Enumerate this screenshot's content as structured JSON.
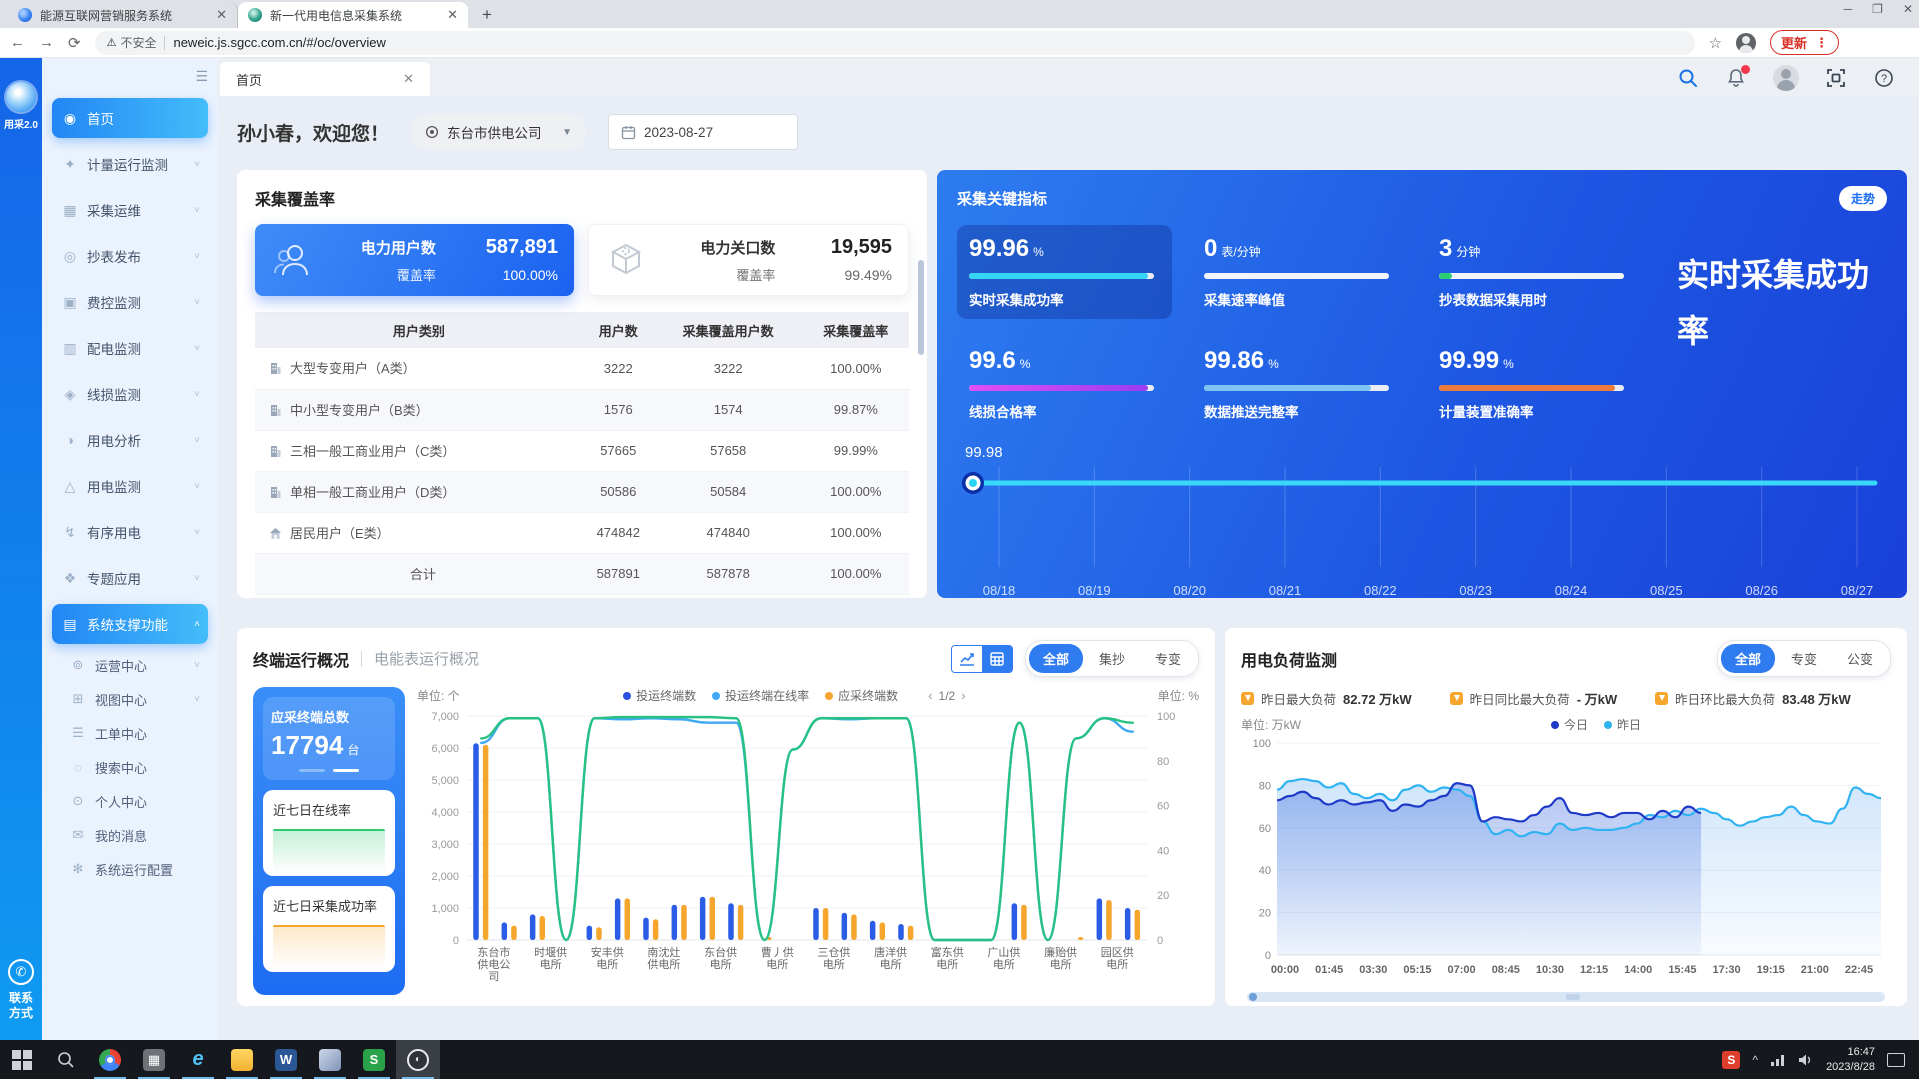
{
  "browser": {
    "tabs": [
      {
        "title": "能源互联网营销服务系统"
      },
      {
        "title": "新一代用电信息采集系统"
      }
    ],
    "new_tab": "+",
    "security_label": "不安全",
    "url": "neweic.js.sgcc.com.cn/#/oc/overview",
    "update_button": "更新"
  },
  "rail": {
    "logo_text": "用采2.0",
    "contact_label": "联系\n方式"
  },
  "sidebar": {
    "items": [
      {
        "label": "首页",
        "icon": "◉",
        "active": true,
        "chevron": false
      },
      {
        "label": "计量运行监测",
        "icon": "✦",
        "chevron": true
      },
      {
        "label": "采集运维",
        "icon": "▦",
        "chevron": true
      },
      {
        "label": "抄表发布",
        "icon": "◎",
        "chevron": true
      },
      {
        "label": "费控监测",
        "icon": "▣",
        "chevron": true
      },
      {
        "label": "配电监测",
        "icon": "▥",
        "chevron": true
      },
      {
        "label": "线损监测",
        "icon": "◈",
        "chevron": true
      },
      {
        "label": "用电分析",
        "icon": "◑",
        "chevron": true
      },
      {
        "label": "用电监测",
        "icon": "△",
        "chevron": true
      },
      {
        "label": "有序用电",
        "icon": "↯",
        "chevron": true
      },
      {
        "label": "专题应用",
        "icon": "❖",
        "chevron": true
      },
      {
        "label": "系统支撑功能",
        "icon": "▤",
        "active": true,
        "expanded": true
      }
    ],
    "sub_items": [
      {
        "label": "运营中心",
        "icon": "⊚",
        "chevron": true
      },
      {
        "label": "视图中心",
        "icon": "⊞",
        "chevron": true
      },
      {
        "label": "工单中心",
        "icon": "☰",
        "chevron": false
      },
      {
        "label": "搜索中心",
        "icon": "◌",
        "chevron": false
      },
      {
        "label": "个人中心",
        "icon": "⊙",
        "chevron": false
      },
      {
        "label": "我的消息",
        "icon": "✉",
        "chevron": false
      },
      {
        "label": "系统运行配置",
        "icon": "✻",
        "chevron": false
      }
    ]
  },
  "header": {
    "page_tab": "首页",
    "greeting": "孙小春，欢迎您！",
    "org_select": "东台市供电公司",
    "date": "2023-08-27"
  },
  "coverage_card": {
    "title": "采集覆盖率",
    "power_users": {
      "label": "电力用户数",
      "value": "587,891",
      "rate_label": "覆盖率",
      "rate": "100.00%"
    },
    "gateways": {
      "label": "电力关口数",
      "value": "19,595",
      "rate_label": "覆盖率",
      "rate": "99.49%"
    },
    "table": {
      "headers": [
        "用户类别",
        "用户数",
        "采集覆盖用户数",
        "采集覆盖率"
      ],
      "rows": [
        {
          "icon": "building",
          "cells": [
            "大型专变用户（A类）",
            "3222",
            "3222",
            "100.00%"
          ]
        },
        {
          "icon": "building",
          "cells": [
            "中小型专变用户（B类）",
            "1576",
            "1574",
            "99.87%"
          ]
        },
        {
          "icon": "building",
          "cells": [
            "三相一般工商业用户（C类）",
            "57665",
            "57658",
            "99.99%"
          ]
        },
        {
          "icon": "building",
          "cells": [
            "单相一般工商业用户（D类）",
            "50586",
            "50584",
            "100.00%"
          ]
        },
        {
          "icon": "house",
          "cells": [
            "居民用户（E类）",
            "474842",
            "474840",
            "100.00%"
          ]
        },
        {
          "icon": "none",
          "cells": [
            "合计",
            "587891",
            "587878",
            "100.00%"
          ]
        }
      ]
    }
  },
  "kpi_card": {
    "title": "采集关键指标",
    "trend_button": "走势",
    "big_text": "实时采集成功率",
    "metrics": [
      {
        "value": "99.96",
        "unit": "%",
        "label": "实时采集成功率",
        "bar_color": "#35d6f5",
        "bar_fill": 0.97,
        "highlight": true
      },
      {
        "value": "0",
        "unit": "表/分钟",
        "label": "采集速率峰值",
        "bar_color": "#f2f4f7",
        "bar_fill": 1
      },
      {
        "value": "3",
        "unit": "分钟",
        "label": "抄表数据采集用时",
        "bar_color": "#f2f4f7",
        "bar_fill": 1,
        "tip_color": "#2ecc71"
      },
      {
        "value": "99.6",
        "unit": "%",
        "label": "线损合格率",
        "bar_color": "#e04ef5",
        "bar_color2": "#9b3df2",
        "bar_fill": 0.97
      },
      {
        "value": "99.86",
        "unit": "%",
        "label": "数据推送完整率",
        "bar_color": "#7fc4f3",
        "bar_fill": 0.9
      },
      {
        "value": "99.99",
        "unit": "%",
        "label": "计量装置准确率",
        "bar_color": "#ee7b3e",
        "bar_fill": 0.95
      }
    ]
  },
  "terminal_card": {
    "tab_active": "终端运行概况",
    "tab_inactive": "电能表运行概况",
    "filters": [
      {
        "label": "全部",
        "on": true
      },
      {
        "label": "集抄"
      },
      {
        "label": "专变"
      }
    ],
    "summary": {
      "label": "应采终端总数",
      "value": "17794",
      "unit": "台"
    },
    "spark1_label": "近七日在线率",
    "spark2_label": "近七日采集成功率",
    "unit_left": "单位: 个",
    "unit_right": "单位: %",
    "pagination": "1/2",
    "legend": [
      {
        "label": "投运终端数",
        "color": "#2b4fe0"
      },
      {
        "label": "投运终端在线率",
        "color": "#3fa9f5"
      },
      {
        "label": "应采终端数",
        "color": "#f6a52d"
      }
    ]
  },
  "load_card": {
    "title": "用电负荷监测",
    "filters": [
      {
        "label": "全部",
        "on": true
      },
      {
        "label": "专变"
      },
      {
        "label": "公变"
      }
    ],
    "stats": [
      {
        "label": "昨日最大负荷",
        "value": "82.72 万kW"
      },
      {
        "label": "昨日同比最大负荷",
        "value": "- 万kW"
      },
      {
        "label": "昨日环比最大负荷",
        "value": "83.48 万kW"
      }
    ],
    "unit": "单位: 万kW",
    "legend": [
      {
        "label": "今日",
        "color": "#1f3ac8"
      },
      {
        "label": "昨日",
        "color": "#2fb3f2"
      }
    ]
  },
  "taskbar": {
    "time": "16:47",
    "date": "2023/8/28"
  },
  "chart_data": [
    {
      "id": "kpi_trend",
      "type": "line",
      "title": "实时采集成功率走势",
      "x": [
        "08/18",
        "08/19",
        "08/20",
        "08/21",
        "08/22",
        "08/23",
        "08/24",
        "08/25",
        "08/26",
        "08/27"
      ],
      "series": [
        {
          "name": "实时采集成功率",
          "color": "#38d8f8",
          "values": [
            99.98,
            99.98,
            99.98,
            99.98,
            99.98,
            99.98,
            99.98,
            99.98,
            99.98,
            99.98
          ]
        }
      ],
      "point_label": "99.98",
      "legend_position": "none",
      "grid": "vertical"
    },
    {
      "id": "terminal_overview",
      "type": "bar",
      "title": "终端运行概况",
      "categories": [
        "东台市供电公司",
        "时堰供电所",
        "安丰供电所",
        "南沈灶供电所",
        "东台供电所",
        "曹丿供电所",
        "三仓供电所",
        "唐洋供电所",
        "富东供电所",
        "广山供电所",
        "廉贻供电所",
        "园区供电所"
      ],
      "label_slots": [
        0,
        2,
        4,
        6,
        8,
        10,
        12,
        14,
        16,
        18,
        20,
        22
      ],
      "ylim_left": [
        0,
        7000
      ],
      "ylim_right": [
        0,
        100
      ],
      "ylabel_left": "个",
      "ylabel_right": "%",
      "legend_position": "top",
      "series": [
        {
          "name": "投运终端数",
          "kind": "bar",
          "color": "#2b5ce6",
          "axis": "left",
          "values": [
            6150,
            550,
            800,
            0,
            450,
            1300,
            700,
            1100,
            1350,
            1150,
            0,
            0,
            1000,
            850,
            600,
            500,
            0,
            0,
            0,
            1150,
            0,
            0,
            1300,
            1000
          ]
        },
        {
          "name": "应采终端数",
          "kind": "bar",
          "color": "#f6a52d",
          "axis": "left",
          "values": [
            6100,
            450,
            750,
            0,
            400,
            1300,
            650,
            1100,
            1350,
            1100,
            30,
            0,
            1000,
            800,
            550,
            450,
            0,
            0,
            0,
            1100,
            0,
            20,
            1250,
            950
          ]
        },
        {
          "name": "投运终端在线率",
          "kind": "line",
          "color": "#3fa9f5",
          "axis": "right",
          "values": [
            88,
            99,
            99,
            0,
            99,
            98.5,
            99,
            98.5,
            97,
            97,
            0,
            85,
            99,
            98.5,
            99,
            99,
            0,
            0,
            0,
            97,
            0,
            90,
            99,
            93
          ]
        },
        {
          "name": "series-green",
          "kind": "line",
          "color": "#27c281",
          "axis": "right",
          "values": [
            90,
            99,
            99,
            0,
            99,
            99.5,
            99.5,
            99.5,
            99.5,
            99,
            0,
            85,
            99,
            99,
            99,
            99,
            0,
            0,
            0,
            97,
            0,
            90,
            99,
            97
          ]
        }
      ]
    },
    {
      "id": "load_monitor",
      "type": "area",
      "title": "用电负荷监测",
      "ylim": [
        0,
        100
      ],
      "ylabel": "万kW",
      "x_ticks": [
        "00:00",
        "01:45",
        "03:30",
        "05:15",
        "07:00",
        "08:45",
        "10:30",
        "12:15",
        "14:00",
        "15:45",
        "17:30",
        "19:15",
        "21:00",
        "22:45"
      ],
      "series": [
        {
          "name": "昨日",
          "color": "#2fb3f2",
          "values": [
            78,
            82,
            83,
            82,
            79,
            81,
            76,
            74,
            76,
            73,
            78,
            80,
            77,
            79,
            78,
            75,
            63,
            57,
            59,
            56,
            58,
            57,
            62,
            59,
            60,
            59,
            59,
            60,
            62,
            66,
            65,
            68,
            66,
            69,
            67,
            64,
            61,
            63,
            65,
            66,
            70,
            66,
            63,
            62,
            69,
            79,
            76,
            74
          ]
        },
        {
          "name": "今日",
          "color": "#1f3ac8",
          "values": [
            73,
            75,
            77,
            74,
            71,
            73,
            71,
            72,
            73,
            68,
            71,
            70,
            73,
            75,
            81,
            80,
            63,
            65,
            64,
            63,
            66,
            70,
            74,
            67,
            66,
            67,
            65,
            67,
            67,
            64,
            68,
            65,
            70,
            67
          ]
        }
      ]
    }
  ]
}
